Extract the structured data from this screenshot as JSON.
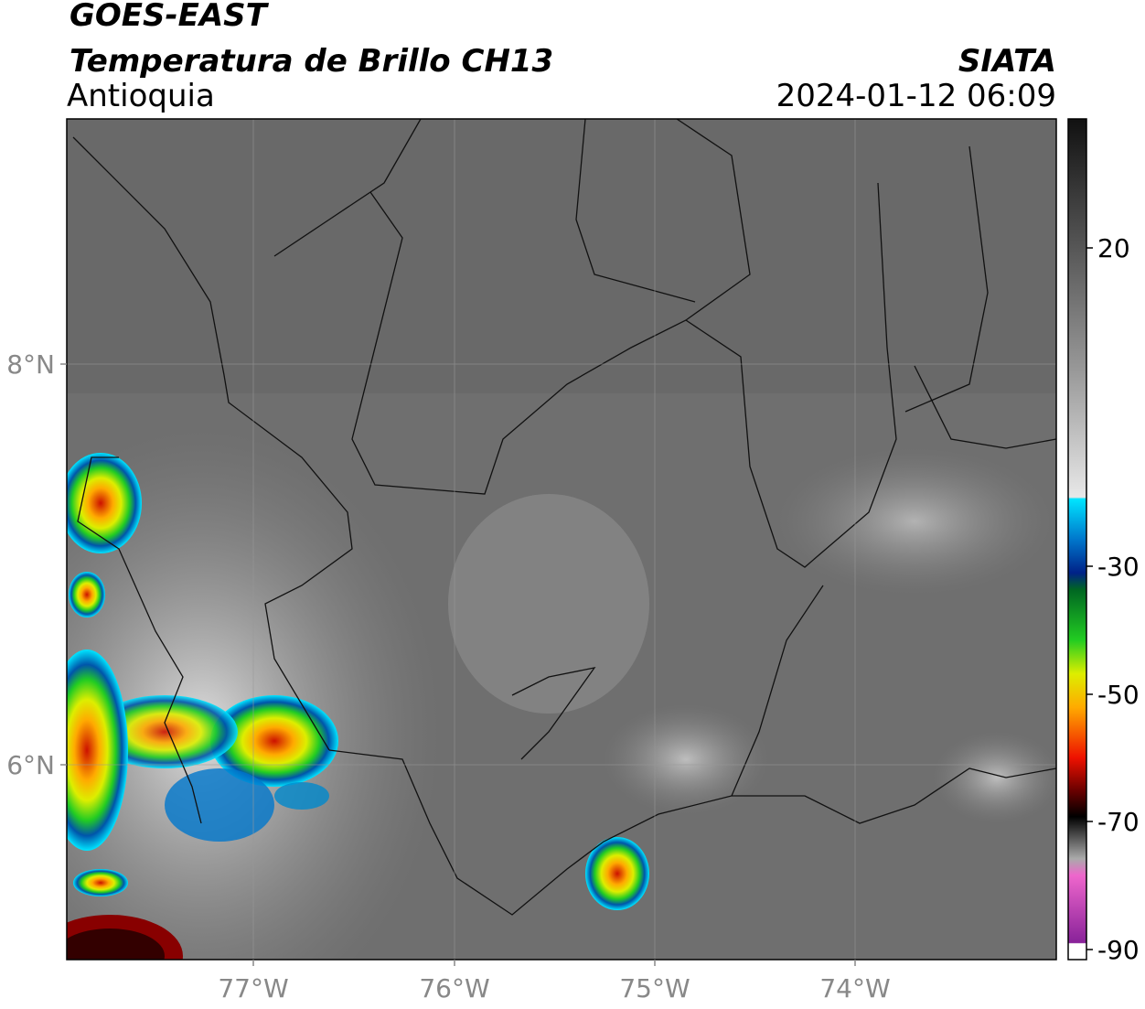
{
  "header": {
    "satellite": "GOES-EAST",
    "product": "Temperatura de Brillo CH13",
    "region": "Antioquia",
    "source": "SIATA",
    "datetime": "2024-01-12 06:09"
  },
  "map": {
    "lat_labels": [
      "8°N",
      "6°N"
    ],
    "lon_labels": [
      "77°W",
      "76°W",
      "75°W",
      "74°W"
    ]
  },
  "colorbar": {
    "tick_labels": [
      "20",
      "-30",
      "-50",
      "-70",
      "-90"
    ]
  }
}
